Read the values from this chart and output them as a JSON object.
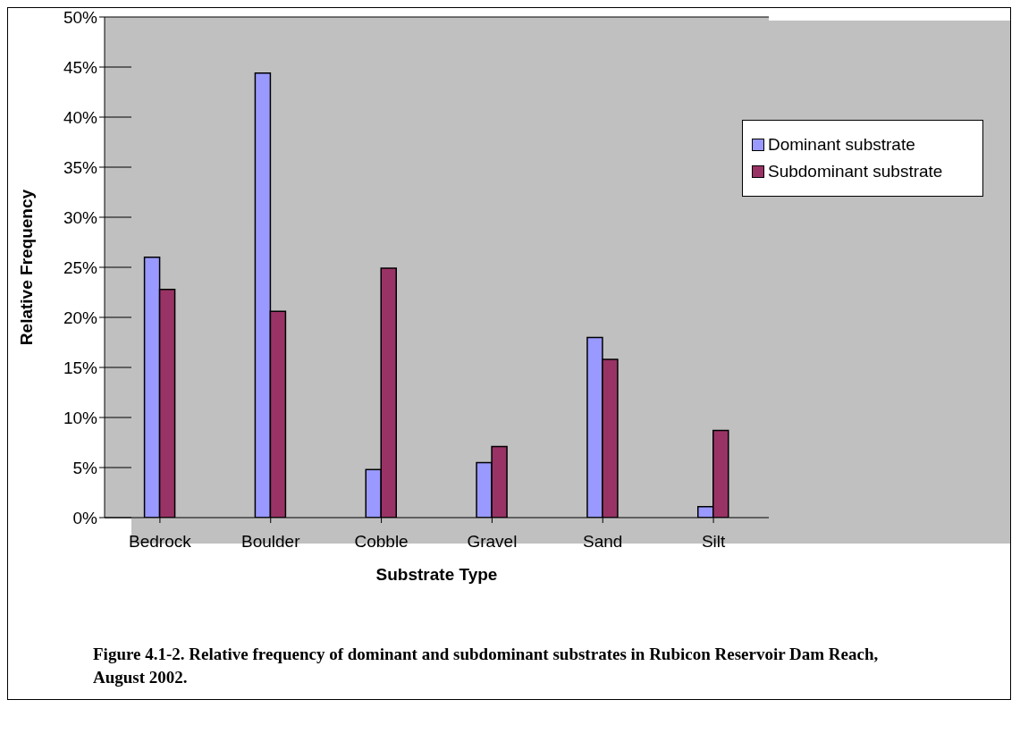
{
  "chart_data": {
    "type": "bar",
    "xlabel": "Substrate Type",
    "ylabel": "Relative Frequency",
    "categories": [
      "Bedrock",
      "Boulder",
      "Cobble",
      "Gravel",
      "Sand",
      "Silt"
    ],
    "series": [
      {
        "name": "Dominant substrate",
        "color": "#9999ff",
        "values": [
          26.0,
          44.4,
          4.8,
          5.5,
          18.0,
          1.1
        ]
      },
      {
        "name": "Subdominant substrate",
        "color": "#993366",
        "values": [
          22.8,
          20.6,
          24.9,
          7.1,
          15.8,
          8.7
        ]
      }
    ],
    "ylim": [
      0,
      50
    ],
    "yticks": [
      {
        "value": 0,
        "label": "0%"
      },
      {
        "value": 5,
        "label": "5%"
      },
      {
        "value": 10,
        "label": "10%"
      },
      {
        "value": 15,
        "label": "15%"
      },
      {
        "value": 20,
        "label": "20%"
      },
      {
        "value": 25,
        "label": "25%"
      },
      {
        "value": 30,
        "label": "30%"
      },
      {
        "value": 35,
        "label": "35%"
      },
      {
        "value": 40,
        "label": "40%"
      },
      {
        "value": 45,
        "label": "45%"
      },
      {
        "value": 50,
        "label": "50%"
      }
    ],
    "grid": "y",
    "legend": "top right",
    "annotations": [
      "Figure 4.1-2. Relative frequency of dominant and subdominant substrates in Rubicon Reservoir Dam Reach, August 2002."
    ]
  }
}
